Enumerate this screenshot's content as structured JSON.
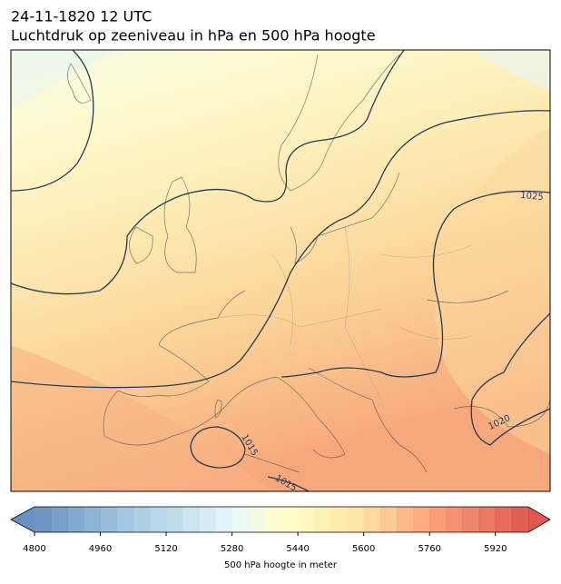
{
  "header": {
    "title": "24-11-1820 12 UTC",
    "subtitle": "Luchtdruk op zeeniveau in hPa en 500 hPa hoogte"
  },
  "map": {
    "contour_labels": [
      "1025",
      "1020",
      "1015",
      "1015"
    ]
  },
  "colorbar": {
    "label": "500 hPa hoogte in meter",
    "lim": [
      4800,
      6000
    ],
    "ticks": [
      4800,
      4960,
      5120,
      5280,
      5440,
      5600,
      5760,
      5920
    ]
  }
}
